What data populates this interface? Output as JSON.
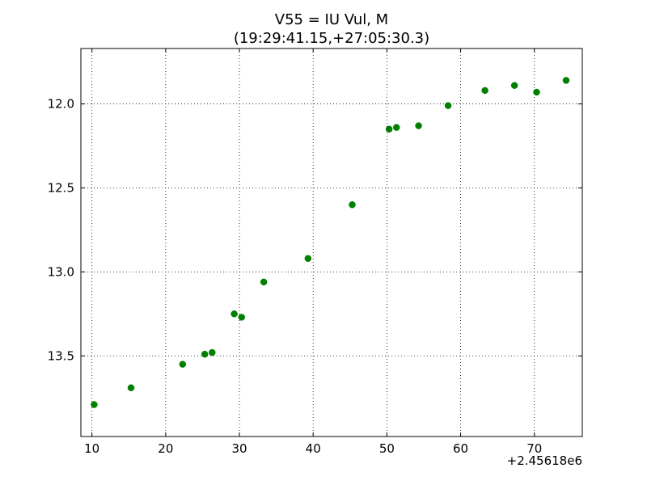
{
  "chart_data": {
    "type": "scatter",
    "title_line1": "V55 = IU Vul, M",
    "title_line2": "(19:29:41.15,+27:05:30.3)",
    "xlabel": "",
    "ylabel": "",
    "x_offset_label": "+2.45618e6",
    "xlim": [
      8.5,
      76.5
    ],
    "ylim": [
      13.98,
      11.67
    ],
    "y_inverted": true,
    "grid": true,
    "marker_color": "#007f00",
    "x_ticks": [
      10,
      20,
      30,
      40,
      50,
      60,
      70
    ],
    "x_tick_labels": [
      "10",
      "20",
      "30",
      "40",
      "50",
      "60",
      "70"
    ],
    "y_ticks": [
      12.0,
      12.5,
      13.0,
      13.5
    ],
    "y_tick_labels": [
      "12.0",
      "12.5",
      "13.0",
      "13.5"
    ],
    "series": [
      {
        "points": [
          [
            10.3,
            13.79
          ],
          [
            15.3,
            13.69
          ],
          [
            22.3,
            13.55
          ],
          [
            25.3,
            13.49
          ],
          [
            26.3,
            13.48
          ],
          [
            29.3,
            13.25
          ],
          [
            30.3,
            13.27
          ],
          [
            33.3,
            13.06
          ],
          [
            39.3,
            12.92
          ],
          [
            45.3,
            12.6
          ],
          [
            50.3,
            12.15
          ],
          [
            51.3,
            12.14
          ],
          [
            54.3,
            12.13
          ],
          [
            58.3,
            12.01
          ],
          [
            63.3,
            11.92
          ],
          [
            67.3,
            11.89
          ],
          [
            70.3,
            11.93
          ],
          [
            74.3,
            11.86
          ]
        ]
      }
    ]
  }
}
